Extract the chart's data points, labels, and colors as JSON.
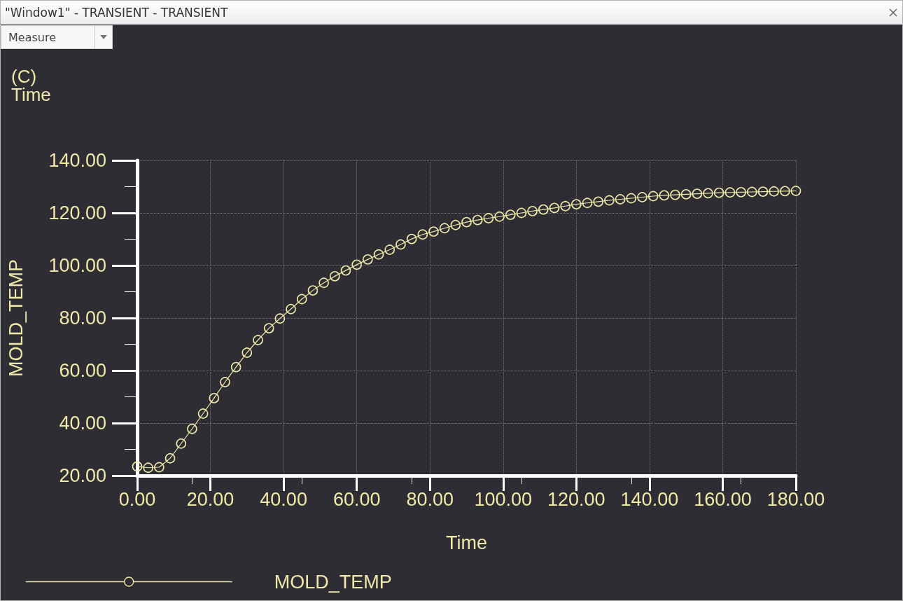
{
  "chart_data": {
    "type": "line",
    "title": "\"Window1\" - TRANSIENT - TRANSIENT",
    "xlabel": "Time",
    "ylabel": "MOLD_TEMP",
    "annotations": [
      "Measure",
      "(C)",
      "Time"
    ],
    "x": [
      0,
      3,
      6,
      9,
      12,
      15,
      18,
      21,
      24,
      27,
      30,
      33,
      36,
      39,
      42,
      45,
      48,
      51,
      54,
      57,
      60,
      63,
      66,
      69,
      72,
      75,
      78,
      81,
      84,
      87,
      90,
      93,
      96,
      99,
      102,
      105,
      108,
      111,
      114,
      117,
      120,
      123,
      126,
      129,
      132,
      135,
      138,
      141,
      144,
      147,
      150,
      153,
      156,
      159,
      162,
      165,
      168,
      171,
      174,
      177,
      180
    ],
    "series": [
      {
        "name": "MOLD_TEMP",
        "color": "#eee9a6",
        "values": [
          23.5,
          23.0,
          23.2,
          26.6,
          32.2,
          37.8,
          43.6,
          49.5,
          55.6,
          61.3,
          66.8,
          71.6,
          76.1,
          79.8,
          83.4,
          87.2,
          90.5,
          93.4,
          95.9,
          98.1,
          100.3,
          102.3,
          104.2,
          106.0,
          108.0,
          110.1,
          111.8,
          112.9,
          114.2,
          115.4,
          116.5,
          117.3,
          118.0,
          118.6,
          119.3,
          120.0,
          120.7,
          121.3,
          121.9,
          122.6,
          123.3,
          123.8,
          124.3,
          124.8,
          125.2,
          125.6,
          126.0,
          126.4,
          126.7,
          126.9,
          127.1,
          127.3,
          127.5,
          127.7,
          127.8,
          127.9,
          128.0,
          128.1,
          128.2,
          128.3,
          128.4
        ]
      }
    ],
    "xlim": [
      0,
      180
    ],
    "xticks": [
      {
        "value": 0,
        "label": "0.00"
      },
      {
        "value": 20,
        "label": "20.00"
      },
      {
        "value": 40,
        "label": "40.00"
      },
      {
        "value": 60,
        "label": "60.00"
      },
      {
        "value": 80,
        "label": "80.00"
      },
      {
        "value": 100,
        "label": "100.00"
      },
      {
        "value": 120,
        "label": "120.00"
      },
      {
        "value": 140,
        "label": "140.00"
      },
      {
        "value": 160,
        "label": "160.00"
      },
      {
        "value": 180,
        "label": "180.00"
      }
    ],
    "ylim": [
      20,
      140
    ],
    "yticks": [
      {
        "value": 20,
        "label": "20.00"
      },
      {
        "value": 40,
        "label": "40.00"
      },
      {
        "value": 60,
        "label": "60.00"
      },
      {
        "value": 80,
        "label": "80.00"
      },
      {
        "value": 100,
        "label": "100.00"
      },
      {
        "value": 120,
        "label": "120.00"
      },
      {
        "value": 140,
        "label": "140.00"
      }
    ],
    "grid": true,
    "legend": "bottom left",
    "marker": "circle",
    "line_style": "solid"
  }
}
